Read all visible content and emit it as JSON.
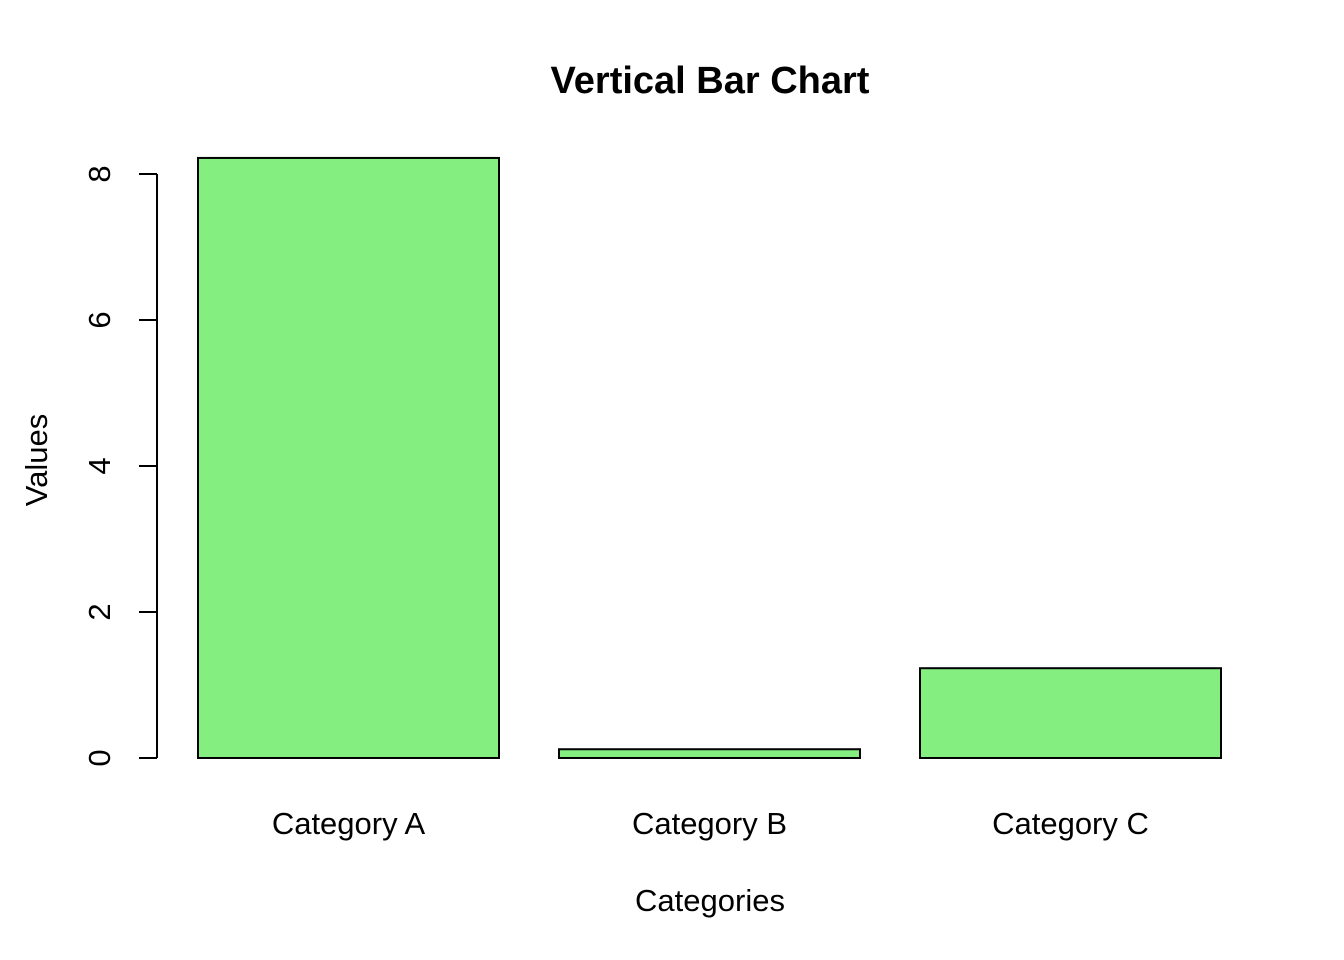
{
  "chart_data": {
    "type": "bar",
    "title": "Vertical Bar Chart",
    "xlabel": "Categories",
    "ylabel": "Values",
    "categories": [
      "Category A",
      "Category B",
      "Category C"
    ],
    "values": [
      8.22,
      0.12,
      1.23
    ],
    "ylim": [
      0,
      8
    ],
    "yticks": [
      0,
      2,
      4,
      6,
      8
    ],
    "bar_color": "#84EF80",
    "grid": false,
    "legend": "none"
  }
}
